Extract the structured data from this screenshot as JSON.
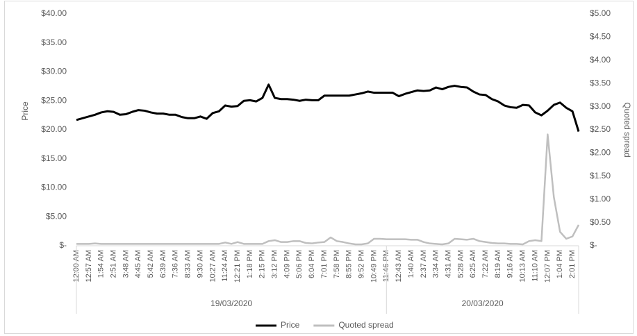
{
  "chart_data": {
    "type": "line",
    "categories": [
      "12:00 AM",
      null,
      "12:57 AM",
      null,
      "1:54 AM",
      null,
      "2:51 AM",
      null,
      "3:48 AM",
      null,
      "4:45 AM",
      null,
      "5:42 AM",
      null,
      "6:39 AM",
      null,
      "7:36 AM",
      null,
      "8:33 AM",
      null,
      "9:30 AM",
      null,
      "10:27 AM",
      null,
      "11:24 AM",
      null,
      "12:21 PM",
      null,
      "1:18 PM",
      null,
      "2:15 PM",
      null,
      "3:12 PM",
      null,
      "4:09 PM",
      null,
      "5:06 PM",
      null,
      "6:04 PM",
      null,
      "7:01 PM",
      null,
      "7:58 PM",
      null,
      "8:55 PM",
      null,
      "9:52 PM",
      null,
      "10:49 PM",
      null,
      "11:46 PM",
      null,
      "12:43 AM",
      null,
      "1:40 AM",
      null,
      "2:37 AM",
      null,
      "3:34 AM",
      null,
      "4:31 AM",
      null,
      "5:28 AM",
      null,
      "6:25 AM",
      null,
      "7:22 AM",
      null,
      "8:19 AM",
      null,
      "9:16 AM",
      null,
      "10:13 AM",
      null,
      "11:10 AM",
      null,
      "12:07 PM",
      null,
      "1:04 PM",
      null,
      "2:01 PM",
      null
    ],
    "x_groups": [
      {
        "label": "19/03/2020",
        "span": 50
      },
      {
        "label": "20/03/2020",
        "span": 32
      }
    ],
    "y_label": "Price",
    "y2_label": "Quoted spread",
    "series": [
      {
        "name": "Price",
        "color": "#000000",
        "values": [
          21.7,
          22.0,
          22.3,
          22.6,
          23.0,
          23.2,
          23.1,
          22.6,
          22.7,
          23.1,
          23.4,
          23.3,
          23.0,
          22.8,
          22.8,
          22.6,
          22.6,
          22.2,
          22.0,
          22.0,
          22.3,
          21.9,
          22.9,
          23.2,
          24.2,
          24.0,
          24.1,
          25.0,
          25.1,
          24.9,
          25.5,
          27.8,
          25.5,
          25.3,
          25.3,
          25.2,
          25.0,
          25.2,
          25.1,
          25.1,
          25.9,
          25.9,
          25.9,
          25.9,
          25.9,
          26.1,
          26.3,
          26.6,
          26.4,
          26.4,
          26.4,
          26.4,
          25.8,
          26.2,
          26.5,
          26.8,
          26.7,
          26.8,
          27.3,
          27.0,
          27.4,
          27.6,
          27.4,
          27.3,
          26.6,
          26.1,
          26.0,
          25.3,
          24.9,
          24.2,
          23.9,
          23.8,
          24.3,
          24.2,
          23.0,
          22.5,
          23.3,
          24.3,
          24.7,
          23.8,
          23.2,
          19.7
        ]
      },
      {
        "name": "Quoted spread",
        "color": "#bfbfbf",
        "axis": "y2",
        "values": [
          0.04,
          0.04,
          0.04,
          0.05,
          0.04,
          0.04,
          0.04,
          0.04,
          0.04,
          0.04,
          0.04,
          0.04,
          0.04,
          0.04,
          0.04,
          0.04,
          0.04,
          0.04,
          0.04,
          0.04,
          0.04,
          0.04,
          0.04,
          0.04,
          0.07,
          0.04,
          0.08,
          0.04,
          0.04,
          0.04,
          0.04,
          0.1,
          0.12,
          0.08,
          0.08,
          0.1,
          0.1,
          0.06,
          0.05,
          0.07,
          0.08,
          0.18,
          0.1,
          0.08,
          0.05,
          0.03,
          0.03,
          0.05,
          0.15,
          0.15,
          0.14,
          0.14,
          0.14,
          0.14,
          0.13,
          0.13,
          0.08,
          0.05,
          0.04,
          0.03,
          0.05,
          0.15,
          0.14,
          0.13,
          0.15,
          0.1,
          0.08,
          0.06,
          0.05,
          0.05,
          0.04,
          0.04,
          0.03,
          0.1,
          0.12,
          0.1,
          2.4,
          1.05,
          0.3,
          0.15,
          0.2,
          0.45
        ]
      }
    ],
    "ylim": [
      0,
      40
    ],
    "yticks": [
      {
        "value": 0,
        "label": "$-"
      },
      {
        "value": 5,
        "label": "$5.00"
      },
      {
        "value": 10,
        "label": "$10.00"
      },
      {
        "value": 15,
        "label": "$15.00"
      },
      {
        "value": 20,
        "label": "$20.00"
      },
      {
        "value": 25,
        "label": "$25.00"
      },
      {
        "value": 30,
        "label": "$30.00"
      },
      {
        "value": 35,
        "label": "$35.00"
      },
      {
        "value": 40,
        "label": "$40.00"
      }
    ],
    "y2lim": [
      0,
      5
    ],
    "y2ticks": [
      {
        "value": 0,
        "label": "$-"
      },
      {
        "value": 0.5,
        "label": "$0.50"
      },
      {
        "value": 1,
        "label": "$1.00"
      },
      {
        "value": 1.5,
        "label": "$1.50"
      },
      {
        "value": 2,
        "label": "$2.00"
      },
      {
        "value": 2.5,
        "label": "$2.50"
      },
      {
        "value": 3,
        "label": "$3.00"
      },
      {
        "value": 3.5,
        "label": "$3.50"
      },
      {
        "value": 4,
        "label": "$4.00"
      },
      {
        "value": 4.5,
        "label": "$4.50"
      },
      {
        "value": 5,
        "label": "$5.00"
      }
    ],
    "legend": "bottom"
  }
}
